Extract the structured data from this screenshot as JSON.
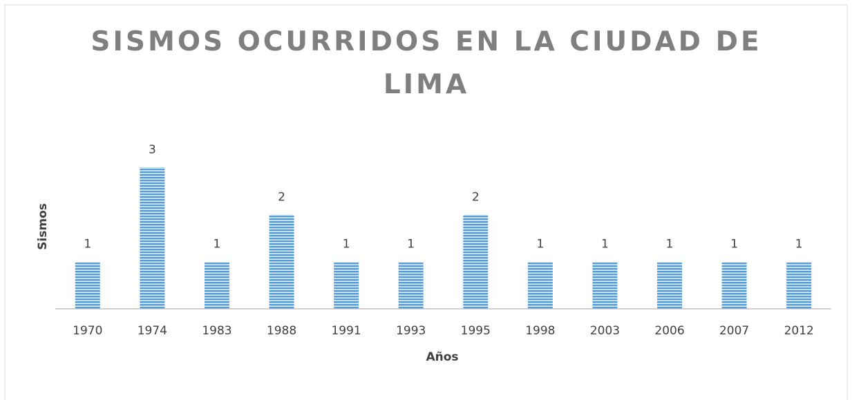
{
  "chart_data": {
    "type": "bar",
    "title": "SISMOS OCURRIDOS EN LA CIUDAD DE LIMA",
    "x_label": "Años",
    "y_label": "Sismos",
    "categories": [
      "1970",
      "1974",
      "1983",
      "1988",
      "1991",
      "1993",
      "1995",
      "1998",
      "2003",
      "2006",
      "2007",
      "2012"
    ],
    "values": [
      1,
      3,
      1,
      2,
      1,
      1,
      2,
      1,
      1,
      1,
      1,
      1
    ],
    "color": "#5b9bd5",
    "ylim": [
      0,
      3.5
    ]
  }
}
